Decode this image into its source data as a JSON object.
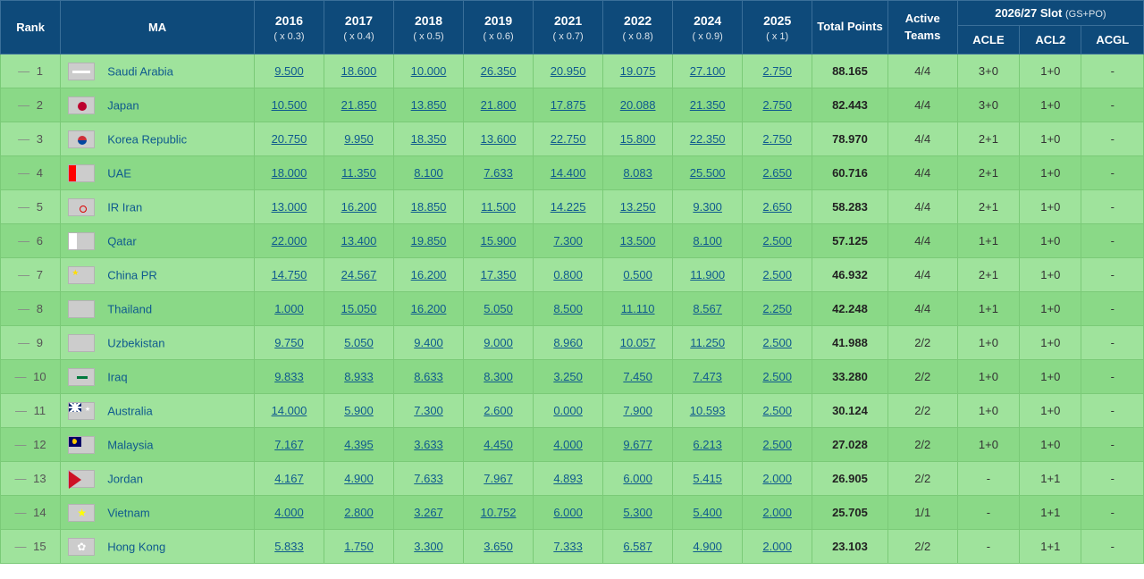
{
  "colors": {
    "header_bg": "#0e4a7a",
    "header_border": "#3a6f99",
    "row_bg": "#9fe39c",
    "row_alt_bg": "#8ad987",
    "cell_border": "#7aca77",
    "link": "#0f5a8e"
  },
  "header": {
    "rank": "Rank",
    "ma": "MA",
    "years": [
      {
        "label": "2016",
        "mult": "( x 0.3)"
      },
      {
        "label": "2017",
        "mult": "( x 0.4)"
      },
      {
        "label": "2018",
        "mult": "( x 0.5)"
      },
      {
        "label": "2019",
        "mult": "( x 0.6)"
      },
      {
        "label": "2021",
        "mult": "( x 0.7)"
      },
      {
        "label": "2022",
        "mult": "( x 0.8)"
      },
      {
        "label": "2024",
        "mult": "( x 0.9)"
      },
      {
        "label": "2025",
        "mult": "( x 1)"
      }
    ],
    "total": "Total Points",
    "active": "Active Teams",
    "slot_group": "2026/27 Slot",
    "slot_group_sub": "(GS+PO)",
    "slot_cols": [
      "ACLE",
      "ACL2",
      "ACGL"
    ]
  },
  "rows": [
    {
      "rank": "1",
      "country": "Saudi Arabia",
      "flag": "sa",
      "y": [
        "9.500",
        "18.600",
        "10.000",
        "26.350",
        "20.950",
        "19.075",
        "27.100",
        "2.750"
      ],
      "total": "88.165",
      "active": "4/4",
      "slots": [
        "3+0",
        "1+0",
        "-"
      ]
    },
    {
      "rank": "2",
      "country": "Japan",
      "flag": "jp",
      "y": [
        "10.500",
        "21.850",
        "13.850",
        "21.800",
        "17.875",
        "20.088",
        "21.350",
        "2.750"
      ],
      "total": "82.443",
      "active": "4/4",
      "slots": [
        "3+0",
        "1+0",
        "-"
      ]
    },
    {
      "rank": "3",
      "country": "Korea Republic",
      "flag": "kr",
      "y": [
        "20.750",
        "9.950",
        "18.350",
        "13.600",
        "22.750",
        "15.800",
        "22.350",
        "2.750"
      ],
      "total": "78.970",
      "active": "4/4",
      "slots": [
        "2+1",
        "1+0",
        "-"
      ]
    },
    {
      "rank": "4",
      "country": "UAE",
      "flag": "ae",
      "y": [
        "18.000",
        "11.350",
        "8.100",
        "7.633",
        "14.400",
        "8.083",
        "25.500",
        "2.650"
      ],
      "total": "60.716",
      "active": "4/4",
      "slots": [
        "2+1",
        "1+0",
        "-"
      ]
    },
    {
      "rank": "5",
      "country": "IR Iran",
      "flag": "ir",
      "y": [
        "13.000",
        "16.200",
        "18.850",
        "11.500",
        "14.225",
        "13.250",
        "9.300",
        "2.650"
      ],
      "total": "58.283",
      "active": "4/4",
      "slots": [
        "2+1",
        "1+0",
        "-"
      ]
    },
    {
      "rank": "6",
      "country": "Qatar",
      "flag": "qa",
      "y": [
        "22.000",
        "13.400",
        "19.850",
        "15.900",
        "7.300",
        "13.500",
        "8.100",
        "2.500"
      ],
      "total": "57.125",
      "active": "4/4",
      "slots": [
        "1+1",
        "1+0",
        "-"
      ]
    },
    {
      "rank": "7",
      "country": "China PR",
      "flag": "cn",
      "y": [
        "14.750",
        "24.567",
        "16.200",
        "17.350",
        "0.800",
        "0.500",
        "11.900",
        "2.500"
      ],
      "total": "46.932",
      "active": "4/4",
      "slots": [
        "2+1",
        "1+0",
        "-"
      ]
    },
    {
      "rank": "8",
      "country": "Thailand",
      "flag": "th",
      "y": [
        "1.000",
        "15.050",
        "16.200",
        "5.050",
        "8.500",
        "11.110",
        "8.567",
        "2.250"
      ],
      "total": "42.248",
      "active": "4/4",
      "slots": [
        "1+1",
        "1+0",
        "-"
      ]
    },
    {
      "rank": "9",
      "country": "Uzbekistan",
      "flag": "uz",
      "y": [
        "9.750",
        "5.050",
        "9.400",
        "9.000",
        "8.960",
        "10.057",
        "11.250",
        "2.500"
      ],
      "total": "41.988",
      "active": "2/2",
      "slots": [
        "1+0",
        "1+0",
        "-"
      ]
    },
    {
      "rank": "10",
      "country": "Iraq",
      "flag": "iq",
      "y": [
        "9.833",
        "8.933",
        "8.633",
        "8.300",
        "3.250",
        "7.450",
        "7.473",
        "2.500"
      ],
      "total": "33.280",
      "active": "2/2",
      "slots": [
        "1+0",
        "1+0",
        "-"
      ]
    },
    {
      "rank": "11",
      "country": "Australia",
      "flag": "au",
      "y": [
        "14.000",
        "5.900",
        "7.300",
        "2.600",
        "0.000",
        "7.900",
        "10.593",
        "2.500"
      ],
      "total": "30.124",
      "active": "2/2",
      "slots": [
        "1+0",
        "1+0",
        "-"
      ]
    },
    {
      "rank": "12",
      "country": "Malaysia",
      "flag": "my",
      "y": [
        "7.167",
        "4.395",
        "3.633",
        "4.450",
        "4.000",
        "9.677",
        "6.213",
        "2.500"
      ],
      "total": "27.028",
      "active": "2/2",
      "slots": [
        "1+0",
        "1+0",
        "-"
      ]
    },
    {
      "rank": "13",
      "country": "Jordan",
      "flag": "jo",
      "y": [
        "4.167",
        "4.900",
        "7.633",
        "7.967",
        "4.893",
        "6.000",
        "5.415",
        "2.000"
      ],
      "total": "26.905",
      "active": "2/2",
      "slots": [
        "-",
        "1+1",
        "-"
      ]
    },
    {
      "rank": "14",
      "country": "Vietnam",
      "flag": "vn",
      "y": [
        "4.000",
        "2.800",
        "3.267",
        "10.752",
        "6.000",
        "5.300",
        "5.400",
        "2.000"
      ],
      "total": "25.705",
      "active": "1/1",
      "slots": [
        "-",
        "1+1",
        "-"
      ]
    },
    {
      "rank": "15",
      "country": "Hong Kong",
      "flag": "hk",
      "y": [
        "5.833",
        "1.750",
        "3.300",
        "3.650",
        "7.333",
        "6.587",
        "4.900",
        "2.000"
      ],
      "total": "23.103",
      "active": "2/2",
      "slots": [
        "-",
        "1+1",
        "-"
      ]
    }
  ]
}
